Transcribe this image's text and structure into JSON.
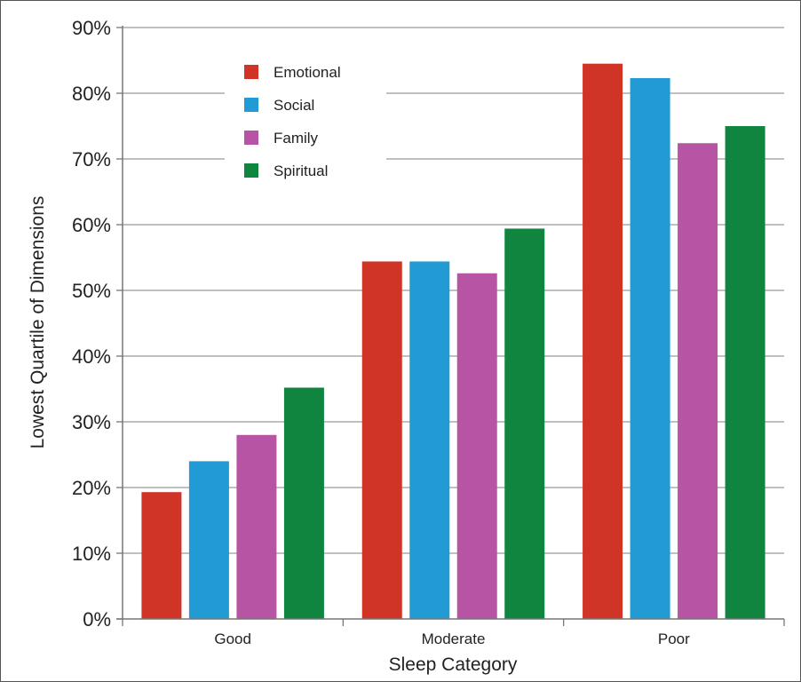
{
  "chart_data": {
    "type": "bar",
    "title": "",
    "xlabel": "Sleep Category",
    "ylabel": "Lowest Quartile of Dimensions",
    "categories": [
      "Good",
      "Moderate",
      "Poor"
    ],
    "ylim": [
      0,
      90
    ],
    "y_ticks": [
      "0%",
      "10%",
      "20%",
      "30%",
      "40%",
      "50%",
      "60%",
      "70%",
      "80%",
      "90%"
    ],
    "y_unit": "percent",
    "grid": true,
    "legend_position": "top-left",
    "series": [
      {
        "name": "Emotional",
        "color": "#d03427",
        "values": [
          19.3,
          54.4,
          84.5
        ]
      },
      {
        "name": "Social",
        "color": "#229bd4",
        "values": [
          24.0,
          54.4,
          82.3
        ]
      },
      {
        "name": "Family",
        "color": "#b854a4",
        "values": [
          28.0,
          52.6,
          72.4
        ]
      },
      {
        "name": "Spiritual",
        "color": "#0f8540",
        "values": [
          35.2,
          59.4,
          75.0
        ]
      }
    ]
  }
}
